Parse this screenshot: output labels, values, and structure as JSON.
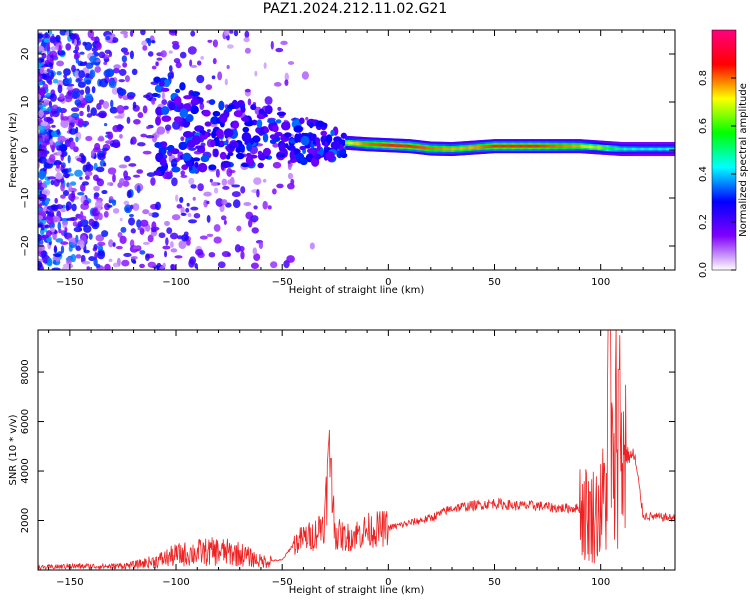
{
  "title": "PAZ1.2024.212.11.02.G21",
  "chart_data": [
    {
      "type": "heatmap",
      "xlabel": "Height of straight line (km)",
      "ylabel": "Frequency (Hz)",
      "xlim": [
        -165,
        135
      ],
      "ylim": [
        -25,
        25
      ],
      "xticks": [
        -150,
        -100,
        -50,
        0,
        50,
        100
      ],
      "yticks": [
        -20,
        -10,
        0,
        10,
        20
      ],
      "colorbar": {
        "label": "Normalized spectral amplitude",
        "range": [
          0,
          1
        ],
        "ticks": [
          "0.0",
          "0.2",
          "0.4",
          "0.6",
          "0.8"
        ],
        "tick_values": [
          0,
          0.2,
          0.4,
          0.6,
          0.8
        ],
        "colormap": [
          "#ffffff",
          "#7f00ff",
          "#0000ff",
          "#00ffff",
          "#00ff00",
          "#ffff00",
          "#ff0000",
          "#ff0080"
        ]
      },
      "ridge": {
        "x": [
          -20,
          -10,
          0,
          10,
          20,
          30,
          40,
          50,
          60,
          70,
          80,
          90,
          100,
          110,
          120,
          135
        ],
        "frequency_hz": [
          1.5,
          1.2,
          1.0,
          0.8,
          0.3,
          0.2,
          0.5,
          0.8,
          0.8,
          0.8,
          0.8,
          0.8,
          0.5,
          0.2,
          0.2,
          0.2
        ],
        "peak_amplitude": [
          0.75,
          0.9,
          0.95,
          0.95,
          0.9,
          0.85,
          0.85,
          0.95,
          0.95,
          0.95,
          0.9,
          0.85,
          0.7,
          0.5,
          0.45,
          0.45
        ]
      }
    },
    {
      "type": "line",
      "xlabel": "Height of straight line (km)",
      "ylabel": "SNR (10 * v/v)",
      "xlim": [
        -165,
        135
      ],
      "ylim": [
        0,
        9700
      ],
      "xticks": [
        -150,
        -100,
        -50,
        0,
        50,
        100
      ],
      "yticks": [
        2000,
        4000,
        6000,
        8000
      ],
      "color": "#ee2222",
      "series": [
        {
          "x": [
            -165,
            -150,
            -130,
            -120,
            -110,
            -100,
            -90,
            -80,
            -70,
            -60,
            -50,
            -45,
            -40,
            -35,
            -30,
            -28,
            -25,
            -20,
            -10,
            0,
            10,
            20,
            30,
            40,
            50,
            60,
            70,
            80,
            90,
            95,
            100,
            103,
            104,
            106,
            108,
            110,
            114,
            116,
            120,
            125,
            135
          ],
          "y": [
            100,
            150,
            150,
            200,
            350,
            600,
            700,
            750,
            650,
            350,
            400,
            1000,
            1300,
            1400,
            2000,
            4500,
            1500,
            1300,
            1600,
            1700,
            1900,
            2100,
            2500,
            2600,
            2700,
            2600,
            2600,
            2500,
            2500,
            2200,
            2400,
            3500,
            9700,
            2400,
            8100,
            4700,
            4600,
            4600,
            2200,
            2150,
            2100
          ]
        }
      ]
    }
  ]
}
